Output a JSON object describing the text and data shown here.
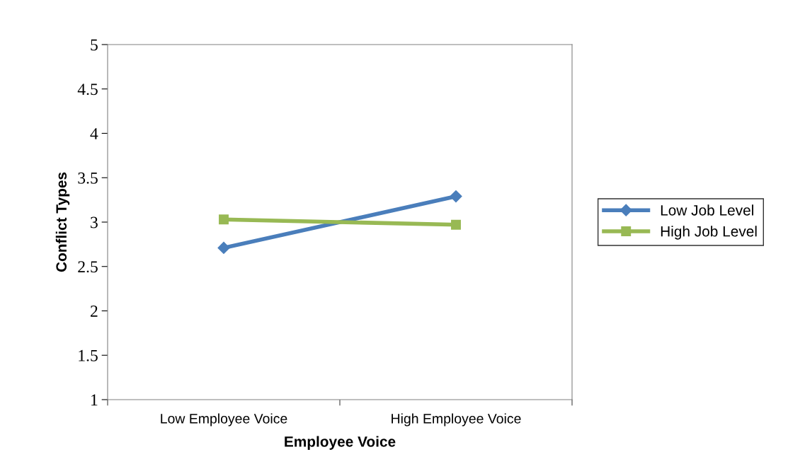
{
  "chart_data": {
    "type": "line",
    "xlabel": "Employee Voice",
    "ylabel": "Conflict Types",
    "categories": [
      "Low Employee Voice",
      "High Employee Voice"
    ],
    "series": [
      {
        "name": "Low Job Level",
        "color": "#4a7ebb",
        "marker": "diamond",
        "values": [
          2.71,
          3.29
        ]
      },
      {
        "name": "High Job Level",
        "color": "#98b954",
        "marker": "square",
        "values": [
          3.03,
          2.97
        ]
      }
    ],
    "ylim": [
      1,
      5
    ],
    "yticks": [
      1,
      1.5,
      2,
      2.5,
      3,
      3.5,
      4,
      4.5,
      5
    ],
    "grid": false,
    "legend": "right",
    "line_style": "solid"
  }
}
